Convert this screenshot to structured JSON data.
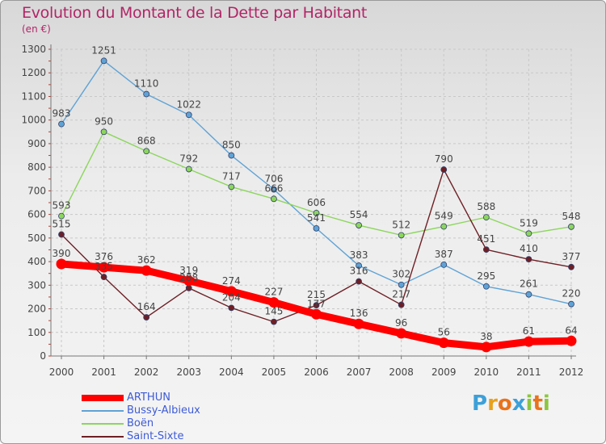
{
  "title": "Evolution du Montant de la Dette par Habitant",
  "unit": "(en €)",
  "brand": {
    "letters": [
      "P",
      "r",
      "o",
      "x",
      "i",
      "t",
      "i"
    ],
    "colors": [
      "#3da0d8",
      "#e8a11c",
      "#e8731c",
      "#3da0d8",
      "#8cc63f",
      "#e8731c",
      "#8cc63f"
    ]
  },
  "chart_data": {
    "type": "line",
    "title": "Evolution du Montant de la Dette par Habitant",
    "ylabel": "(en €)",
    "xlabel": "",
    "ylim": [
      0,
      1300
    ],
    "yticks": [
      0,
      100,
      200,
      300,
      400,
      500,
      600,
      700,
      800,
      900,
      1000,
      1100,
      1200,
      1300
    ],
    "categories": [
      "2000",
      "2001",
      "2002",
      "2003",
      "2004",
      "2005",
      "2006",
      "2007",
      "2008",
      "2009",
      "2010",
      "2011",
      "2012"
    ],
    "series": [
      {
        "name": "ARTHUN",
        "color": "#ff0000",
        "values": [
          390,
          376,
          362,
          319,
          274,
          227,
          177,
          136,
          96,
          56,
          38,
          61,
          64
        ],
        "thick": true
      },
      {
        "name": "Bussy-Albieux",
        "color": "#5fa3d6",
        "values": [
          983,
          1251,
          1110,
          1022,
          850,
          706,
          541,
          383,
          302,
          387,
          295,
          261,
          220
        ],
        "thick": false
      },
      {
        "name": "Boën",
        "color": "#8cd65c",
        "values": [
          593,
          950,
          868,
          792,
          717,
          666,
          606,
          554,
          512,
          549,
          588,
          519,
          548
        ],
        "thick": false
      },
      {
        "name": "Saint-Sixte",
        "color": "#6e1f25",
        "values": [
          515,
          335,
          164,
          288,
          204,
          145,
          215,
          316,
          217,
          790,
          451,
          410,
          377
        ],
        "thick": false
      }
    ]
  }
}
